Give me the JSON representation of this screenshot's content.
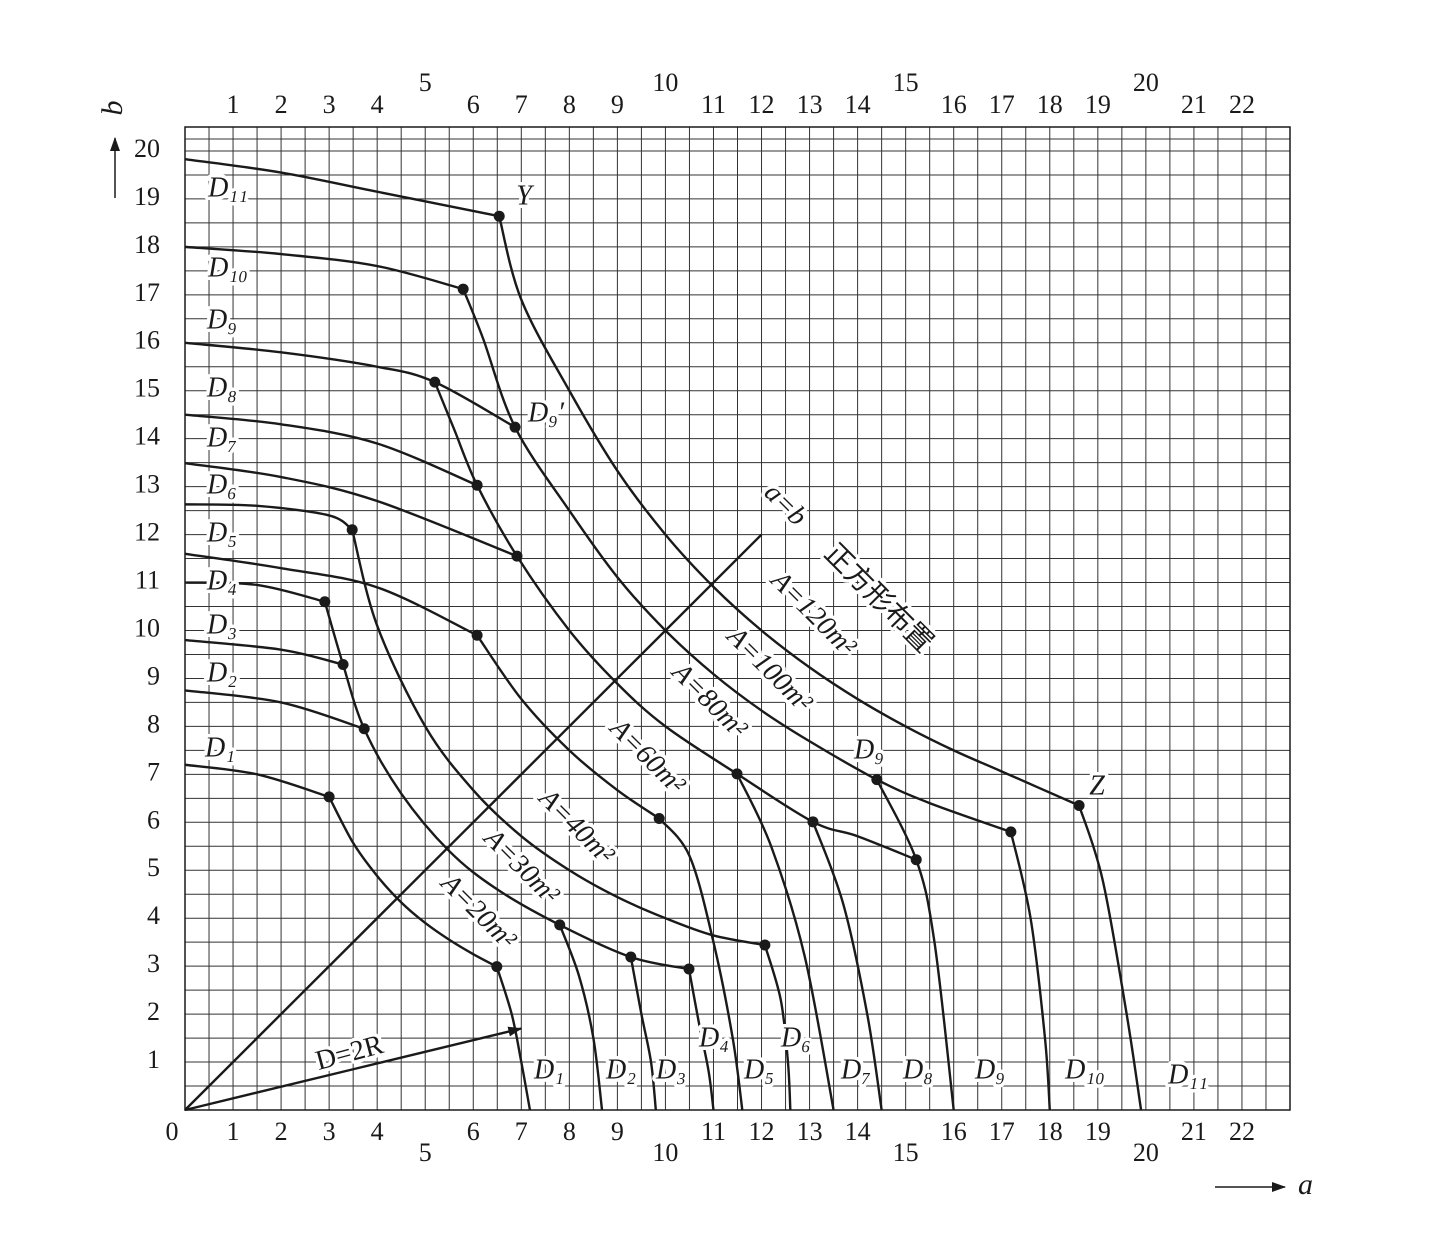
{
  "chart_data": {
    "type": "line",
    "x_label": "a",
    "y_label": "b",
    "xlim": [
      0,
      23
    ],
    "ylim": [
      0,
      20.5
    ],
    "xticks": [
      0,
      1,
      2,
      3,
      4,
      5,
      6,
      7,
      8,
      9,
      10,
      11,
      12,
      13,
      14,
      15,
      16,
      17,
      18,
      19,
      20,
      21,
      22
    ],
    "yticks": [
      1,
      2,
      3,
      4,
      5,
      6,
      7,
      8,
      9,
      10,
      11,
      12,
      13,
      14,
      15,
      16,
      17,
      18,
      19,
      20
    ],
    "grid": true,
    "color": "#1a1a1a",
    "curves": [
      {
        "x": [
          0,
          2,
          4,
          6.54
        ],
        "y": [
          19.83,
          19.55,
          19.15,
          18.64
        ]
      },
      {
        "x": [
          0,
          2,
          4,
          5.79
        ],
        "y": [
          18,
          17.85,
          17.6,
          17.12
        ]
      },
      {
        "x": [
          0,
          2,
          4,
          5.2,
          6.87
        ],
        "y": [
          16,
          15.8,
          15.5,
          15.18,
          14.24
        ]
      },
      {
        "x": [
          0,
          2,
          4,
          6.08
        ],
        "y": [
          14.5,
          14.3,
          13.9,
          13.03
        ]
      },
      {
        "x": [
          0,
          2,
          4,
          6.91
        ],
        "y": [
          13.49,
          13.2,
          12.7,
          11.55
        ]
      },
      {
        "x": [
          0,
          1.5,
          3,
          3.48
        ],
        "y": [
          12.63,
          12.6,
          12.4,
          12.1
        ]
      },
      {
        "x": [
          0,
          2,
          4,
          6.08
        ],
        "y": [
          11.6,
          11.3,
          10.9,
          9.9
        ]
      },
      {
        "x": [
          0,
          1.5,
          2.91
        ],
        "y": [
          11,
          10.95,
          10.6
        ]
      },
      {
        "x": [
          0,
          2,
          3.29
        ],
        "y": [
          9.8,
          9.6,
          9.29
        ]
      },
      {
        "x": [
          0,
          2,
          3.73
        ],
        "y": [
          8.75,
          8.5,
          7.95
        ]
      },
      {
        "x": [
          0,
          1.5,
          3
        ],
        "y": [
          7.2,
          7,
          6.53
        ]
      },
      {
        "x": [
          3,
          3.5,
          4,
          4.5,
          5,
          5.5,
          6,
          6.49
        ],
        "y": [
          6.53,
          5.57,
          4.88,
          4.33,
          3.9,
          3.55,
          3.25,
          2.99
        ]
      },
      {
        "x": [
          2.91,
          3.29,
          3.73,
          4.5,
          5.5,
          6.5,
          7.8,
          9.28,
          10.49
        ],
        "y": [
          10.6,
          9.29,
          7.95,
          6.6,
          5.4,
          4.6,
          3.86,
          3.19,
          2.94
        ]
      },
      {
        "x": [
          3.48,
          4,
          5,
          6,
          7,
          8,
          9,
          10,
          11,
          12.07
        ],
        "y": [
          12.1,
          10.1,
          8,
          6.67,
          5.71,
          5,
          4.44,
          4,
          3.64,
          3.44
        ]
      },
      {
        "x": [
          6.08,
          7,
          8,
          9,
          9.87
        ],
        "y": [
          9.9,
          8.57,
          7.5,
          6.67,
          6.08
        ]
      },
      {
        "x": [
          5.2,
          5.6,
          6.08,
          6.91,
          8,
          9,
          10,
          11.49,
          13.07,
          14,
          15.22
        ],
        "y": [
          15.18,
          14.2,
          13.03,
          11.55,
          10,
          8.89,
          8,
          7.01,
          6.01,
          5.71,
          5.22
        ]
      },
      {
        "x": [
          5.79,
          6.2,
          6.87,
          8,
          9,
          10,
          11,
          12,
          13,
          14.4,
          15.5,
          17.19
        ],
        "y": [
          17.12,
          16.1,
          14.24,
          12.5,
          11.11,
          10,
          9.09,
          8.33,
          7.69,
          6.89,
          6.4,
          5.8
        ]
      },
      {
        "x": [
          6.54,
          7,
          8,
          9,
          10,
          11,
          12,
          13,
          14,
          15,
          16,
          17,
          18.61
        ],
        "y": [
          18.64,
          16.9,
          15,
          13.33,
          12,
          10.91,
          10,
          9.23,
          8.57,
          8,
          7.5,
          7.06,
          6.35
        ]
      },
      {
        "x": [
          6.49,
          6.8,
          7,
          7.18
        ],
        "y": [
          2.99,
          2,
          1,
          0
        ]
      },
      {
        "x": [
          7.8,
          8.2,
          8.5,
          8.68
        ],
        "y": [
          3.86,
          2.8,
          1.5,
          0
        ]
      },
      {
        "x": [
          9.28,
          9.5,
          9.7,
          9.8
        ],
        "y": [
          3.19,
          2,
          1,
          0
        ]
      },
      {
        "x": [
          10.49,
          10.7,
          10.9,
          11
        ],
        "y": [
          2.94,
          1.8,
          0.8,
          0
        ]
      },
      {
        "x": [
          9.87,
          10.5,
          11,
          11.4,
          11.6
        ],
        "y": [
          6.08,
          5.3,
          3.5,
          1.5,
          0
        ]
      },
      {
        "x": [
          12.07,
          12.4,
          12.55,
          12.6
        ],
        "y": [
          3.44,
          2.3,
          1,
          0
        ]
      },
      {
        "x": [
          11.49,
          12.2,
          12.9,
          13.5
        ],
        "y": [
          7.01,
          5.5,
          3.2,
          0
        ]
      },
      {
        "x": [
          13.07,
          13.7,
          14.2,
          14.5
        ],
        "y": [
          6.01,
          4.3,
          2,
          0
        ]
      },
      {
        "x": [
          14.4,
          15.22,
          15.6,
          16
        ],
        "y": [
          6.89,
          5.22,
          3.5,
          0
        ]
      },
      {
        "x": [
          17.19,
          17.6,
          17.9,
          18
        ],
        "y": [
          5.8,
          4,
          1.5,
          0
        ]
      },
      {
        "x": [
          18.61,
          19.1,
          19.6,
          19.9
        ],
        "y": [
          6.35,
          4.8,
          2,
          0
        ]
      },
      {
        "x": [
          0,
          12
        ],
        "y": [
          0,
          12
        ]
      },
      {
        "x": [
          0,
          7
        ],
        "y": [
          0,
          1.7
        ],
        "arrow": true
      }
    ],
    "points": {
      "x": [
        6.54,
        5.79,
        5.2,
        6.87,
        6.08,
        6.91,
        3.48,
        6.08,
        2.91,
        3.29,
        3.73,
        3,
        6.49,
        7.8,
        9.28,
        10.49,
        9.87,
        12.07,
        11.49,
        13.07,
        14.4,
        15.22,
        17.19,
        18.61
      ],
      "y": [
        18.64,
        17.12,
        15.18,
        14.24,
        13.03,
        11.55,
        12.1,
        9.9,
        10.6,
        9.29,
        7.95,
        6.53,
        2.99,
        3.86,
        3.19,
        2.94,
        6.08,
        3.44,
        7.01,
        6.01,
        6.89,
        5.22,
        5.8,
        6.35
      ]
    },
    "annotations": [
      "D₁₁",
      "D₁₀",
      "D₉",
      "D₈",
      "D₇",
      "D₆",
      "D₅",
      "D₄",
      "D₃",
      "D₂",
      "D₁",
      "D₁",
      "D₂",
      "D₃",
      "D₄",
      "D₅",
      "D₆",
      "D₇",
      "D₈",
      "D₉",
      "D₁₀",
      "D₁₁",
      "Y",
      "Z",
      "D₉′",
      "D₉",
      "D=2R",
      "a=b",
      "正方形布置",
      "A=20m²",
      "A=30m²",
      "A=40m²",
      "A=60m²",
      "A=80m²",
      "A=100m²",
      "A=120m²"
    ]
  }
}
